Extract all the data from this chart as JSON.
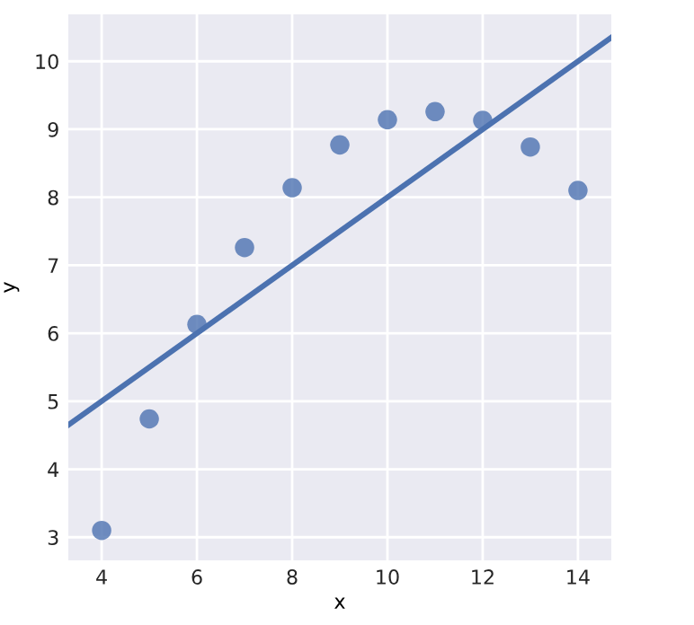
{
  "chart_data": {
    "type": "scatter",
    "xlabel": "x",
    "ylabel": "y",
    "series": [
      {
        "color": "#4c72b0",
        "marker": "circle",
        "x": [
          4,
          5,
          6,
          7,
          8,
          9,
          10,
          11,
          12,
          13,
          14
        ],
        "values": [
          3.1,
          4.74,
          6.13,
          7.26,
          8.14,
          8.77,
          9.14,
          9.26,
          9.13,
          8.74,
          8.1
        ]
      },
      {
        "type": "line",
        "marker": "none",
        "color": "#4c72b0",
        "x": [
          3.3,
          14.7
        ],
        "values": [
          4.65,
          10.35
        ]
      }
    ],
    "xlim": [
      3.3,
      14.7
    ],
    "ylim": [
      2.66,
      10.69
    ],
    "xticks": [
      4,
      6,
      8,
      10,
      12,
      14
    ],
    "yticks": [
      3,
      4,
      5,
      6,
      7,
      8,
      9,
      10
    ],
    "grid": true
  }
}
